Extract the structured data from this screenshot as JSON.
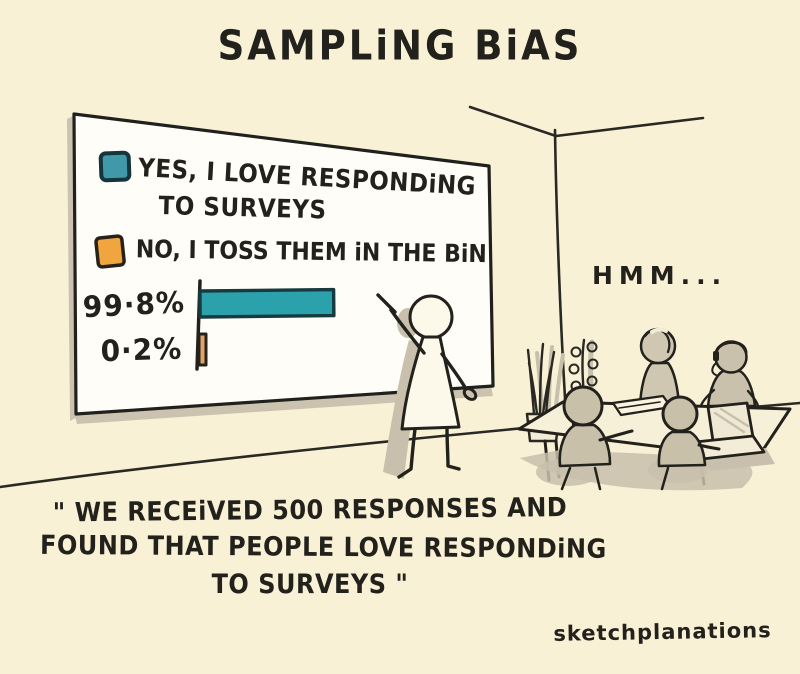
{
  "title": "SAMPLiNG BiAS",
  "whiteboard": {
    "legend": [
      {
        "swatch_color": "#3f99a8",
        "label_line1": "YES, I LOVE RESPONDiNG",
        "label_line2": "TO SURVEYS"
      },
      {
        "swatch_color": "#f1a53f",
        "label": "NO, I TOSS THEM iN THE BiN"
      }
    ],
    "bar_labels": {
      "yes": "99·8%",
      "no": "0·2%"
    }
  },
  "chart_data": {
    "type": "bar",
    "orientation": "horizontal",
    "title": "SAMPLING BIAS",
    "categories": [
      "YES, I LOVE RESPONDING TO SURVEYS",
      "NO, I TOSS THEM IN THE BIN"
    ],
    "values": [
      99.8,
      0.2
    ],
    "value_labels": [
      "99·8%",
      "0·2%"
    ],
    "series_colors": [
      "#2ba1ab",
      "#e0a368"
    ],
    "legend_position": "top-left of whiteboard",
    "axis": {
      "x_max": 100,
      "gridlines": false
    }
  },
  "speech": {
    "audience_reaction": "HMM..."
  },
  "caption": {
    "line1": "\" WE RECEiVED 500 RESPONSES AND",
    "line2": "FOUND THAT PEOPLE LOVE RESPONDiNG",
    "line3": "TO SURVEYS \""
  },
  "signature": "sketchplanations",
  "palette": {
    "background": "#f8f1d6",
    "ink": "#23211c",
    "teal": "#2ba1ab",
    "teal_legend": "#3f99a8",
    "orange_legend": "#f1a53f",
    "orange_bar": "#e0a368",
    "shadow_tan": "#c8c0ac",
    "board_white": "#fefdf8"
  }
}
